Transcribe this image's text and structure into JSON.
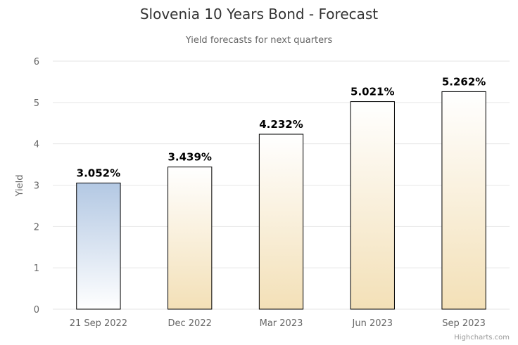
{
  "chart_data": {
    "type": "bar",
    "title": "Slovenia 10 Years Bond - Forecast",
    "subtitle": "Yield forecasts for next quarters",
    "xlabel": "",
    "ylabel": "Yield",
    "ylim": [
      0,
      6
    ],
    "yticks": [
      "0",
      "1",
      "2",
      "3",
      "4",
      "5",
      "6"
    ],
    "categories": [
      "21 Sep 2022",
      "Dec 2022",
      "Mar 2023",
      "Jun 2023",
      "Sep 2023"
    ],
    "values": [
      3.052,
      3.439,
      4.232,
      5.021,
      5.262
    ],
    "data_labels": [
      "3.052%",
      "3.439%",
      "4.232%",
      "5.021%",
      "5.262%"
    ],
    "grid": true,
    "legend": "none",
    "colors": {
      "current_top": "#b3c8e3",
      "current_bottom": "#ffffff",
      "forecast_top": "#ffffff",
      "forecast_bottom": "#f3e0b7",
      "bar_border": "#000000",
      "grid": "#e6e6e6",
      "axis_text": "#666666"
    }
  },
  "credit": "Highcharts.com"
}
